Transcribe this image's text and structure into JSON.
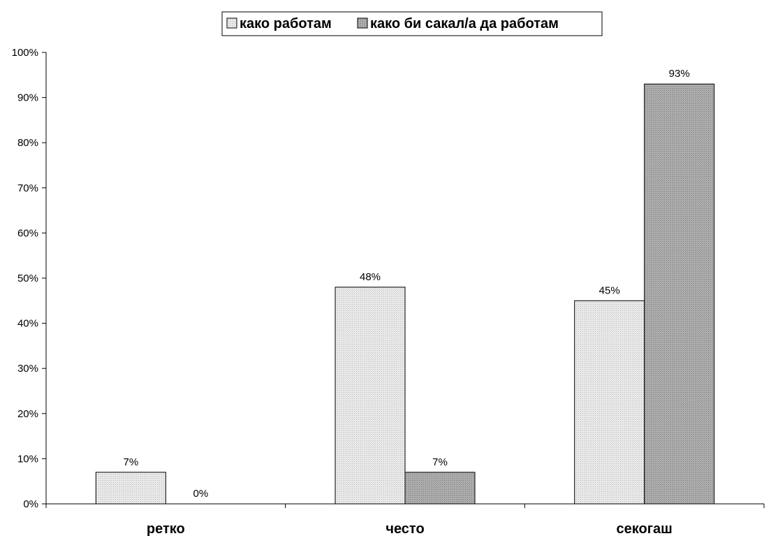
{
  "chart_data": {
    "type": "bar",
    "categories": [
      "ретко",
      "често",
      "секогаш"
    ],
    "series": [
      {
        "name": "како работам",
        "values": [
          7,
          48,
          45
        ],
        "labels": [
          "7%",
          "48%",
          "45%"
        ],
        "color": "#e6e6e6"
      },
      {
        "name": "како би сакал/а да работам",
        "values": [
          0,
          7,
          93
        ],
        "labels": [
          "0%",
          "7%",
          "93%"
        ],
        "color": "#a8a8a8"
      }
    ],
    "yticks": [
      "0%",
      "10%",
      "20%",
      "30%",
      "40%",
      "50%",
      "60%",
      "70%",
      "80%",
      "90%",
      "100%"
    ],
    "ylim": [
      0,
      100
    ],
    "grid": false,
    "legend_position": "top-center"
  }
}
